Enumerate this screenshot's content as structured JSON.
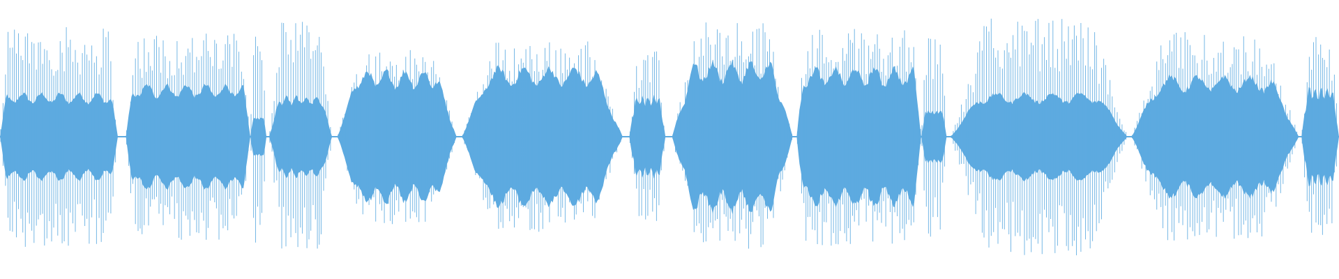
{
  "waveform": {
    "color": "#5DAAE0",
    "background": "#FFFFFF",
    "amplitude_peak_max": 0.85,
    "segments": [
      {
        "start": 0.0,
        "end": 0.088,
        "core": 0.22,
        "peak": 0.8,
        "sharp": true
      },
      {
        "start": 0.094,
        "end": 0.187,
        "core": 0.28,
        "peak": 0.76,
        "sharp": true
      },
      {
        "start": 0.187,
        "end": 0.199,
        "core": 0.05,
        "peak": 0.8,
        "sharp": false
      },
      {
        "start": 0.201,
        "end": 0.248,
        "core": 0.2,
        "peak": 0.84,
        "sharp": false
      },
      {
        "start": 0.252,
        "end": 0.341,
        "core": 0.38,
        "peak": 0.64,
        "sharp": false
      },
      {
        "start": 0.345,
        "end": 0.465,
        "core": 0.4,
        "peak": 0.7,
        "sharp": false
      },
      {
        "start": 0.47,
        "end": 0.497,
        "core": 0.2,
        "peak": 0.62,
        "sharp": false
      },
      {
        "start": 0.502,
        "end": 0.592,
        "core": 0.44,
        "peak": 0.83,
        "sharp": false
      },
      {
        "start": 0.595,
        "end": 0.688,
        "core": 0.4,
        "peak": 0.8,
        "sharp": true
      },
      {
        "start": 0.688,
        "end": 0.707,
        "core": 0.1,
        "peak": 0.75,
        "sharp": false
      },
      {
        "start": 0.71,
        "end": 0.842,
        "core": 0.22,
        "peak": 0.86,
        "sharp": false
      },
      {
        "start": 0.845,
        "end": 0.97,
        "core": 0.34,
        "peak": 0.76,
        "sharp": false
      },
      {
        "start": 0.972,
        "end": 1.0,
        "core": 0.26,
        "peak": 0.74,
        "sharp": false
      }
    ]
  }
}
